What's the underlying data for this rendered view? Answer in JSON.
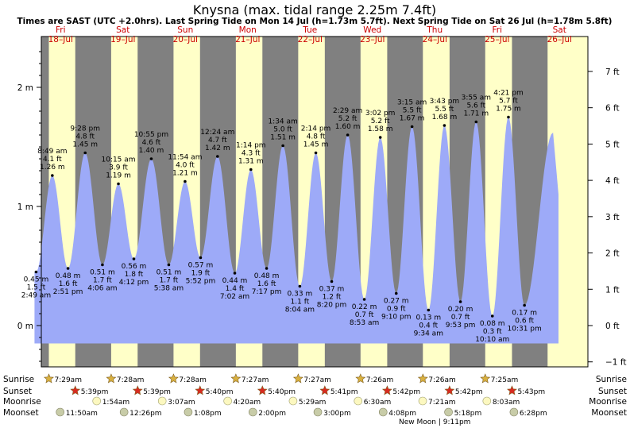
{
  "chart_data": {
    "type": "area",
    "title": "Knysna (max. tidal range 2.25m 7.4ft)",
    "subtitle": "Times are SAST (UTC +2.0hrs). Last Spring Tide on Mon 14 Jul (h=1.73m 5.7ft). Next Spring Tide on Sat 26 Jul (h=1.78m 5.8ft)",
    "days": [
      {
        "dow": "Fri",
        "date": "18–Jul"
      },
      {
        "dow": "Sat",
        "date": "19–Jul"
      },
      {
        "dow": "Sun",
        "date": "20–Jul"
      },
      {
        "dow": "Mon",
        "date": "21–Jul"
      },
      {
        "dow": "Tue",
        "date": "22–Jul"
      },
      {
        "dow": "Wed",
        "date": "23–Jul"
      },
      {
        "dow": "Thu",
        "date": "24–Jul"
      },
      {
        "dow": "Fri",
        "date": "25–Jul"
      },
      {
        "dow": "Sat",
        "date": "26–Jul"
      }
    ],
    "y_left_ticks": [
      {
        "v": 0,
        "label": "0 m"
      },
      {
        "v": 1,
        "label": "1 m"
      },
      {
        "v": 2,
        "label": "2 m"
      }
    ],
    "y_right_ticks": [
      {
        "ft": -1,
        "label": "−1 ft"
      },
      {
        "ft": 0,
        "label": "0 ft"
      },
      {
        "ft": 1,
        "label": "1 ft"
      },
      {
        "ft": 2,
        "label": "2 ft"
      },
      {
        "ft": 3,
        "label": "3 ft"
      },
      {
        "ft": 4,
        "label": "4 ft"
      },
      {
        "ft": 5,
        "label": "5 ft"
      },
      {
        "ft": 6,
        "label": "6 ft"
      },
      {
        "ft": 7,
        "label": "7 ft"
      }
    ],
    "ylim_m": [
      -0.35,
      2.35
    ],
    "tides": [
      {
        "day": -0.01,
        "t": "02:49",
        "time": "2:49 am",
        "m": 0.45,
        "m_label": "0.45 m",
        "ft": "1.5 ft",
        "type": "low"
      },
      {
        "day": 0,
        "t": "08:49",
        "time": "8:49 am",
        "m": 1.26,
        "m_label": "1.26 m",
        "ft": "4.1 ft",
        "type": "high"
      },
      {
        "day": 0,
        "t": "14:51",
        "time": "2:51 pm",
        "m": 0.48,
        "m_label": "0.48 m",
        "ft": "1.6 ft",
        "type": "low"
      },
      {
        "day": 0,
        "t": "21:28",
        "time": "9:28 pm",
        "m": 1.45,
        "m_label": "1.45 m",
        "ft": "4.8 ft",
        "type": "high"
      },
      {
        "day": 1,
        "t": "04:06",
        "time": "4:06 am",
        "m": 0.51,
        "m_label": "0.51 m",
        "ft": "1.7 ft",
        "type": "low"
      },
      {
        "day": 1,
        "t": "10:15",
        "time": "10:15 am",
        "m": 1.19,
        "m_label": "1.19 m",
        "ft": "3.9 ft",
        "type": "high"
      },
      {
        "day": 1,
        "t": "16:12",
        "time": "4:12 pm",
        "m": 0.56,
        "m_label": "0.56 m",
        "ft": "1.8 ft",
        "type": "low"
      },
      {
        "day": 1,
        "t": "22:55",
        "time": "10:55 pm",
        "m": 1.4,
        "m_label": "1.40 m",
        "ft": "4.6 ft",
        "type": "high"
      },
      {
        "day": 2,
        "t": "05:38",
        "time": "5:38 am",
        "m": 0.51,
        "m_label": "0.51 m",
        "ft": "1.7 ft",
        "type": "low"
      },
      {
        "day": 2,
        "t": "11:54",
        "time": "11:54 am",
        "m": 1.21,
        "m_label": "1.21 m",
        "ft": "4.0 ft",
        "type": "high"
      },
      {
        "day": 2,
        "t": "17:52",
        "time": "5:52 pm",
        "m": 0.57,
        "m_label": "0.57 m",
        "ft": "1.9 ft",
        "type": "low"
      },
      {
        "day": 3,
        "t": "00:24",
        "time": "12:24 am",
        "m": 1.42,
        "m_label": "1.42 m",
        "ft": "4.7 ft",
        "type": "high"
      },
      {
        "day": 3,
        "t": "07:02",
        "time": "7:02 am",
        "m": 0.44,
        "m_label": "0.44 m",
        "ft": "1.4 ft",
        "type": "low"
      },
      {
        "day": 3,
        "t": "13:14",
        "time": "1:14 pm",
        "m": 1.31,
        "m_label": "1.31 m",
        "ft": "4.3 ft",
        "type": "high"
      },
      {
        "day": 3,
        "t": "19:17",
        "time": "7:17 pm",
        "m": 0.48,
        "m_label": "0.48 m",
        "ft": "1.6 ft",
        "type": "low"
      },
      {
        "day": 4,
        "t": "01:34",
        "time": "1:34 am",
        "m": 1.51,
        "m_label": "1.51 m",
        "ft": "5.0 ft",
        "type": "high"
      },
      {
        "day": 4,
        "t": "08:04",
        "time": "8:04 am",
        "m": 0.33,
        "m_label": "0.33 m",
        "ft": "1.1 ft",
        "type": "low"
      },
      {
        "day": 4,
        "t": "14:14",
        "time": "2:14 pm",
        "m": 1.45,
        "m_label": "1.45 m",
        "ft": "4.8 ft",
        "type": "high"
      },
      {
        "day": 4,
        "t": "20:20",
        "time": "8:20 pm",
        "m": 0.37,
        "m_label": "0.37 m",
        "ft": "1.2 ft",
        "type": "low"
      },
      {
        "day": 5,
        "t": "02:29",
        "time": "2:29 am",
        "m": 1.6,
        "m_label": "1.60 m",
        "ft": "5.2 ft",
        "type": "high"
      },
      {
        "day": 5,
        "t": "08:53",
        "time": "8:53 am",
        "m": 0.22,
        "m_label": "0.22 m",
        "ft": "0.7 ft",
        "type": "low"
      },
      {
        "day": 5,
        "t": "15:02",
        "time": "3:02 pm",
        "m": 1.58,
        "m_label": "1.58 m",
        "ft": "5.2 ft",
        "type": "high"
      },
      {
        "day": 5,
        "t": "21:10",
        "time": "9:10 pm",
        "m": 0.27,
        "m_label": "0.27 m",
        "ft": "0.9 ft",
        "type": "low"
      },
      {
        "day": 6,
        "t": "03:15",
        "time": "3:15 am",
        "m": 1.67,
        "m_label": "1.67 m",
        "ft": "5.5 ft",
        "type": "high"
      },
      {
        "day": 6,
        "t": "09:34",
        "time": "9:34 am",
        "m": 0.13,
        "m_label": "0.13 m",
        "ft": "0.4 ft",
        "type": "low"
      },
      {
        "day": 6,
        "t": "15:43",
        "time": "3:43 pm",
        "m": 1.68,
        "m_label": "1.68 m",
        "ft": "5.5 ft",
        "type": "high"
      },
      {
        "day": 6,
        "t": "21:53",
        "time": "9:53 pm",
        "m": 0.2,
        "m_label": "0.20 m",
        "ft": "0.7 ft",
        "type": "low"
      },
      {
        "day": 7,
        "t": "03:55",
        "time": "3:55 am",
        "m": 1.71,
        "m_label": "1.71 m",
        "ft": "5.6 ft",
        "type": "high"
      },
      {
        "day": 7,
        "t": "10:10",
        "time": "10:10 am",
        "m": 0.08,
        "m_label": "0.08 m",
        "ft": "0.3 ft",
        "type": "low"
      },
      {
        "day": 7,
        "t": "16:21",
        "time": "4:21 pm",
        "m": 1.75,
        "m_label": "1.75 m",
        "ft": "5.7 ft",
        "type": "high"
      },
      {
        "day": 7,
        "t": "22:31",
        "time": "10:31 pm",
        "m": 0.17,
        "m_label": "0.17 m",
        "ft": "0.6 ft",
        "type": "low"
      }
    ],
    "sun": [
      {
        "rise": "07:29",
        "rise_label": "7:29am",
        "set": "17:39",
        "set_label": "5:39pm"
      },
      {
        "rise": "07:28",
        "rise_label": "7:28am",
        "set": "17:39",
        "set_label": "5:39pm"
      },
      {
        "rise": "07:28",
        "rise_label": "7:28am",
        "set": "17:40",
        "set_label": "5:40pm"
      },
      {
        "rise": "07:27",
        "rise_label": "7:27am",
        "set": "17:40",
        "set_label": "5:40pm"
      },
      {
        "rise": "07:27",
        "rise_label": "7:27am",
        "set": "17:41",
        "set_label": "5:41pm"
      },
      {
        "rise": "07:26",
        "rise_label": "7:26am",
        "set": "17:42",
        "set_label": "5:42pm"
      },
      {
        "rise": "07:26",
        "rise_label": "7:26am",
        "set": "17:42",
        "set_label": "5:42pm"
      },
      {
        "rise": "07:25",
        "rise_label": "7:25am",
        "set": "17:43",
        "set_label": "5:43pm"
      }
    ],
    "moonrise": [
      {
        "day": 1,
        "t": "01:54",
        "label": "1:54am"
      },
      {
        "day": 2,
        "t": "03:07",
        "label": "3:07am"
      },
      {
        "day": 3,
        "t": "04:20",
        "label": "4:20am"
      },
      {
        "day": 4,
        "t": "05:29",
        "label": "5:29am"
      },
      {
        "day": 5,
        "t": "06:30",
        "label": "6:30am"
      },
      {
        "day": 6,
        "t": "07:21",
        "label": "7:21am"
      },
      {
        "day": 7,
        "t": "08:03",
        "label": "8:03am"
      }
    ],
    "moonset": [
      {
        "day": 0,
        "t": "11:50",
        "label": "11:50am"
      },
      {
        "day": 1,
        "t": "12:26",
        "label": "12:26pm"
      },
      {
        "day": 2,
        "t": "13:08",
        "label": "1:08pm"
      },
      {
        "day": 3,
        "t": "14:00",
        "label": "2:00pm"
      },
      {
        "day": 4,
        "t": "15:00",
        "label": "3:00pm"
      },
      {
        "day": 5,
        "t": "16:08",
        "label": "4:08pm"
      },
      {
        "day": 6,
        "t": "17:18",
        "label": "5:18pm"
      },
      {
        "day": 7,
        "t": "18:28",
        "label": "6:28pm"
      }
    ],
    "row_labels": {
      "sunrise": "Sunrise",
      "sunset": "Sunset",
      "moonrise": "Moonrise",
      "moonset": "Moonset"
    },
    "moon_phase": {
      "day": 6,
      "label": "New Moon | 9:11pm"
    },
    "colors": {
      "night": "#808080",
      "day": "#ffffc8",
      "water": "#9daaf8",
      "day_text": "#cc0000",
      "star_rise": "#d8b040",
      "star_set": "#d82a20",
      "moon": "#fcf8c0",
      "moonset": "#c8cca8"
    }
  }
}
